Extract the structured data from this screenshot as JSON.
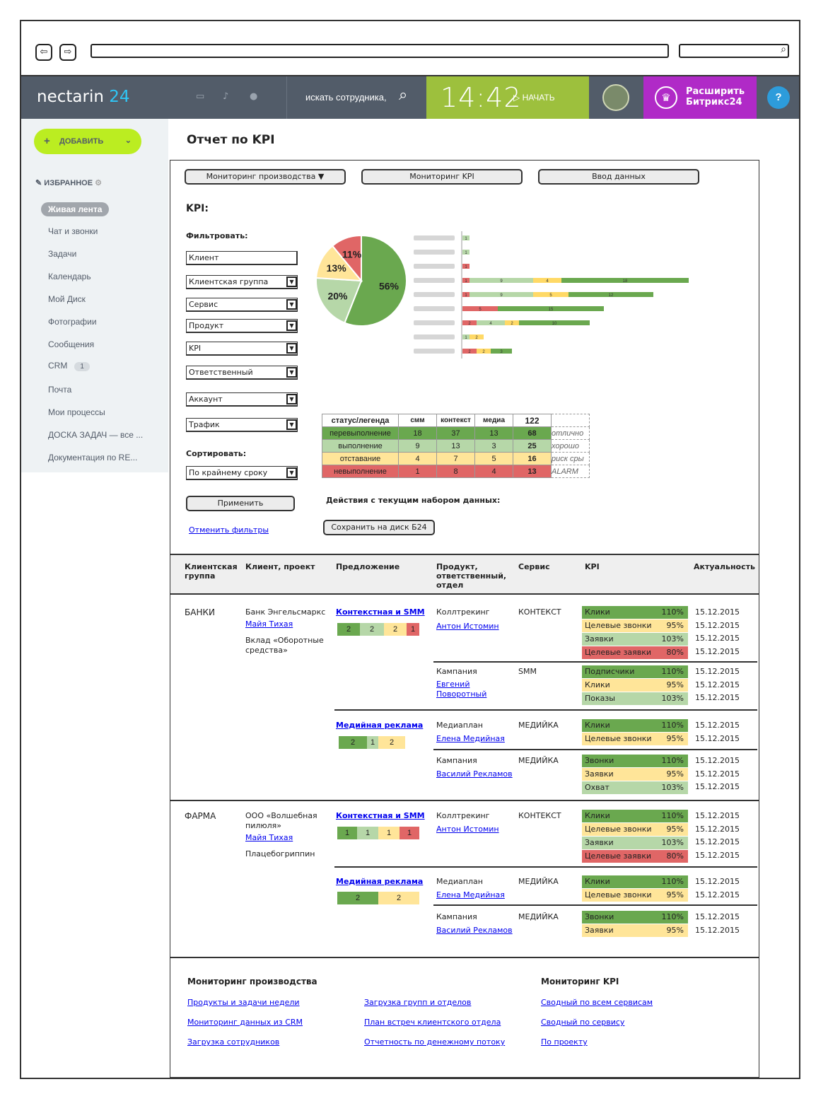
{
  "browser": {
    "back": "⇦",
    "forward": "⇨",
    "search_icon": "magnifier-icon"
  },
  "topbar": {
    "logo": "nectarin",
    "logo_num": "24",
    "emp_search": "искать сотрудника,",
    "time": "14:42",
    "start": "НАЧАТЬ",
    "expand": "Расширить Битрикс24",
    "help": "?"
  },
  "sidebar": {
    "add": "ДОБАВИТЬ",
    "fav": "ИЗБРАННОЕ",
    "items": [
      "Живая лента",
      "Чат и звонки",
      "Задачи",
      "Календарь",
      "Мой Диск",
      "Фотографии",
      "Сообщения",
      "CRM",
      "Почта",
      "Мои процессы",
      "ДОСКА ЗАДАЧ — все ...",
      "Документация по RE..."
    ],
    "crm_badge": "1"
  },
  "page_title": "Отчет по KPI",
  "tabs": [
    "Мониторинг производства",
    "Мониторинг KPI",
    "Ввод данных"
  ],
  "kpi_label": "KPI:",
  "filter_label": "Фильтровать:",
  "filters": [
    "Клиент",
    "Клиентская группа",
    "Сервис",
    "Продукт",
    "KPI",
    "Ответственный",
    "Аккаунт",
    "Трафик"
  ],
  "sort_label": "Сортировать:",
  "sort_value": "По крайнему сроку",
  "apply": "Применить",
  "cancel_filters": "Отменить фильтры",
  "actions_label": "Действия с текущим набором данных:",
  "save": "Сохранить на диск Б24",
  "chart_data": [
    {
      "type": "pie",
      "values": [
        56,
        20,
        13,
        11
      ],
      "labels": [
        "56%",
        "20%",
        "13%",
        "11%"
      ],
      "colors": [
        "#6aa84f",
        "#b6d7a8",
        "#ffe599",
        "#e06666"
      ]
    },
    {
      "type": "bar",
      "stacked": true,
      "orientation": "horizontal",
      "series": [
        {
          "name": "отлично",
          "color": "#6aa84f"
        },
        {
          "name": "хорошо",
          "color": "#b6d7a8"
        },
        {
          "name": "риск",
          "color": "#ffd966"
        },
        {
          "name": "ALARM",
          "color": "#e06666"
        }
      ],
      "rows": [
        [
          0,
          1,
          0,
          0
        ],
        [
          0,
          1,
          0,
          0
        ],
        [
          0,
          0,
          0,
          1
        ],
        [
          18,
          9,
          4,
          1
        ],
        [
          12,
          9,
          5,
          1
        ],
        [
          15,
          0,
          0,
          5
        ],
        [
          10,
          4,
          2,
          2
        ],
        [
          0,
          1,
          2,
          0
        ],
        [
          3,
          0,
          2,
          2
        ]
      ],
      "labels": [
        [
          "",
          "1",
          "",
          ""
        ],
        [
          "",
          "1",
          "",
          ""
        ],
        [
          "",
          "",
          "",
          "1"
        ],
        [
          "18",
          "9",
          "4",
          "1"
        ],
        [
          "12",
          "9",
          "5",
          "1"
        ],
        [
          "15",
          "",
          "",
          "5"
        ],
        [
          "10",
          "4",
          "2",
          "2"
        ],
        [
          "",
          "1",
          "2",
          ""
        ],
        [
          "3",
          "",
          "2",
          "2"
        ]
      ]
    }
  ],
  "legend": {
    "headers": [
      "статус/легенда",
      "смм",
      "контекст",
      "медиа",
      "122"
    ],
    "rows": [
      {
        "status": "перевыполнение",
        "vals": [
          "18",
          "37",
          "13"
        ],
        "total": "68",
        "note": "отлично",
        "color": "#6aa84f"
      },
      {
        "status": "выполнение",
        "vals": [
          "9",
          "13",
          "3"
        ],
        "total": "25",
        "note": "хорошо",
        "color": "#b6d7a8"
      },
      {
        "status": "отставание",
        "vals": [
          "4",
          "7",
          "5"
        ],
        "total": "16",
        "note": "риск сры",
        "color": "#ffe599"
      },
      {
        "status": "невыполнение",
        "vals": [
          "1",
          "8",
          "4"
        ],
        "total": "13",
        "note": "ALARM",
        "color": "#e06666"
      }
    ]
  },
  "table": {
    "headers": [
      "Клиентская группа",
      "Клиент, проект",
      "Предложение",
      "Продукт, ответственный, отдел",
      "Сервис",
      "KPI",
      "Актуальность"
    ],
    "g1": "БАНКИ",
    "g1_client": "Банк Энгельсмаркс",
    "g1_person": "Майя Тихая",
    "g1_project": "Вклад «Оборотные средства»",
    "g2": "ФАРМА",
    "g2_client": "ООО «Волшебная пилюля»",
    "g2_person": "Майя Тихая",
    "g2_project": "Плацебогриппин",
    "offer_ctx": "Контекстная и SMM",
    "offer_media": "Медийная реклама",
    "p_calltrack": "Коллтрекинг",
    "p_campaign": "Кампания",
    "p_mediaplan": "Медиаплан",
    "r_istomin": "Антон Истомин",
    "r_evgeny": "Евгений Поворотный",
    "r_elena": "Елена Медийная",
    "r_vasily": "Василий Рекламов",
    "s_ctx": "КОНТЕКСТ",
    "s_smm": "SMM",
    "s_media": "МЕДИЙКА",
    "k_clicks": "Клики",
    "k_calls": "Целевые звонки",
    "k_apps": "Заявки",
    "k_tapps": "Целевые заявки",
    "k_subs": "Подписчики",
    "k_shows": "Показы",
    "k_rings": "Звонки",
    "k_reach": "Охват",
    "v110": "110%",
    "v95": "95%",
    "v103": "103%",
    "v80": "80%",
    "date": "15.12.2015",
    "mini1": [
      "2",
      "2",
      "2",
      "1"
    ],
    "mini2": [
      "2",
      "1",
      "2"
    ],
    "mini3": [
      "1",
      "1",
      "1",
      "1"
    ],
    "mini4": [
      "2",
      "2"
    ]
  },
  "footer": {
    "col1_title": "Мониторинг производства",
    "col1": [
      "Продукты и задачи недели",
      "Мониторинг данных из CRM",
      "Загрузка сотрудников"
    ],
    "col2": [
      "Загрузка групп и отделов",
      "План встреч клиентского отдела",
      "Отчетность по денежному потоку"
    ],
    "col3_title": "Мониторинг KPI",
    "col3": [
      "Сводный по всем сервисам",
      "Сводный по сервису",
      "По проекту"
    ]
  }
}
